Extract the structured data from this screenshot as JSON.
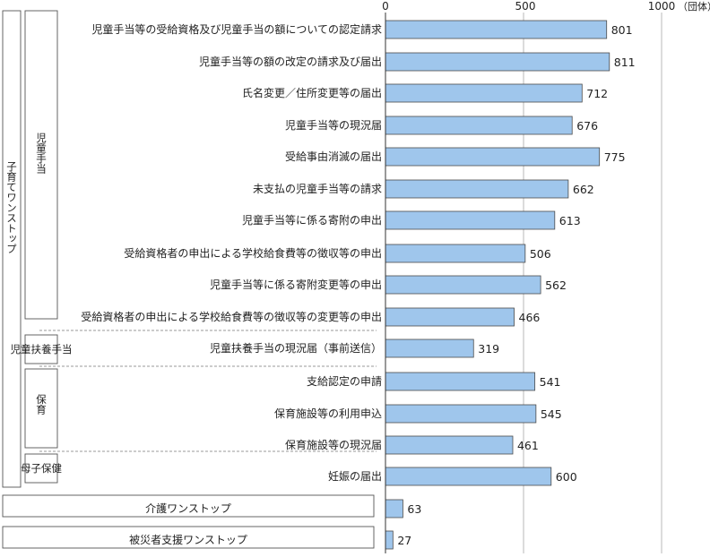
{
  "chart_data": {
    "type": "bar",
    "orientation": "horizontal",
    "x_ticks": [
      "0",
      "500",
      "1000"
    ],
    "unit": "（団体）",
    "xlim": [
      0,
      1000
    ],
    "grid": true,
    "categories": [
      "児童手当等の受給資格及び児童手当の額についての認定請求",
      "児童手当等の額の改定の請求及び届出",
      "氏名変更／住所変更等の届出",
      "児童手当等の現況届",
      "受給事由消滅の届出",
      "未支払の児童手当等の請求",
      "児童手当等に係る寄附の申出",
      "受給資格者の申出による学校給食費等の徴収等の申出",
      "児童手当等に係る寄附変更等の申出",
      "受給資格者の申出による学校給食費等の徴収等の変更等の申出",
      "児童扶養手当の現況届（事前送信）",
      "支給認定の申請",
      "保育施設等の利用申込",
      "保育施設等の現況届",
      "妊娠の届出",
      "介護ワンストップ",
      "被災者支援ワンストップ"
    ],
    "values": [
      801,
      811,
      712,
      676,
      775,
      662,
      613,
      506,
      562,
      466,
      319,
      541,
      545,
      461,
      600,
      63,
      27
    ],
    "value_labels": [
      "801",
      "811",
      "712",
      "676",
      "775",
      "662",
      "613",
      "506",
      "562",
      "466",
      "319",
      "541",
      "545",
      "461",
      "600",
      "63",
      "27"
    ],
    "bar_color": "#9fc6ec",
    "groups": {
      "outer": "子育てワンストップ",
      "sub": [
        "児童手当",
        "児童扶養手当",
        "保育",
        "母子保健"
      ]
    }
  }
}
